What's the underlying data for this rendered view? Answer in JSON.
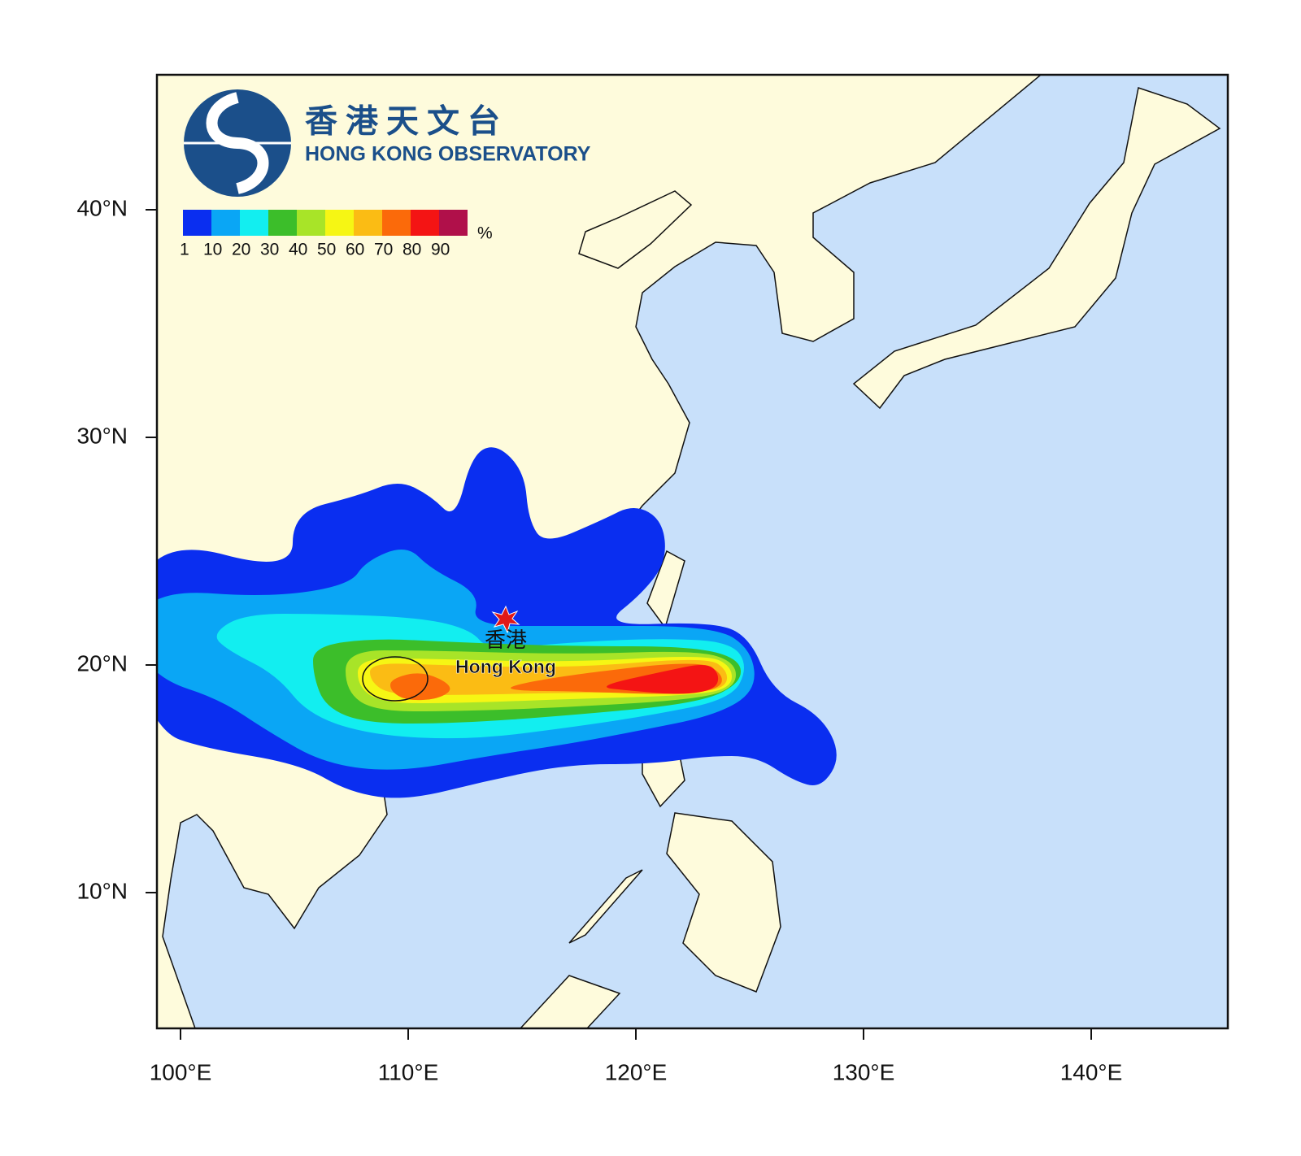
{
  "logo": {
    "chinese": "香港天文台",
    "english": "HONG KONG OBSERVATORY"
  },
  "legend": {
    "levels": [
      1,
      10,
      20,
      30,
      40,
      50,
      60,
      70,
      80,
      90
    ],
    "colors": [
      "#0a2ef0",
      "#0aa6f5",
      "#12eef0",
      "#3cbe2a",
      "#a8e428",
      "#f6f614",
      "#fbbc14",
      "#fb6a0a",
      "#f41414",
      "#b0104a"
    ],
    "unit": "%"
  },
  "axes": {
    "xticks": [
      {
        "value": 100,
        "label": "100°E"
      },
      {
        "value": 110,
        "label": "110°E"
      },
      {
        "value": 120,
        "label": "120°E"
      },
      {
        "value": 130,
        "label": "130°E"
      },
      {
        "value": 140,
        "label": "140°E"
      }
    ],
    "yticks": [
      {
        "value": 40,
        "label": "40°N"
      },
      {
        "value": 30,
        "label": "30°N"
      },
      {
        "value": 20,
        "label": "20°N"
      },
      {
        "value": 10,
        "label": "10°N"
      }
    ]
  },
  "place": {
    "chinese": "香港",
    "english": "Hong Kong"
  }
}
